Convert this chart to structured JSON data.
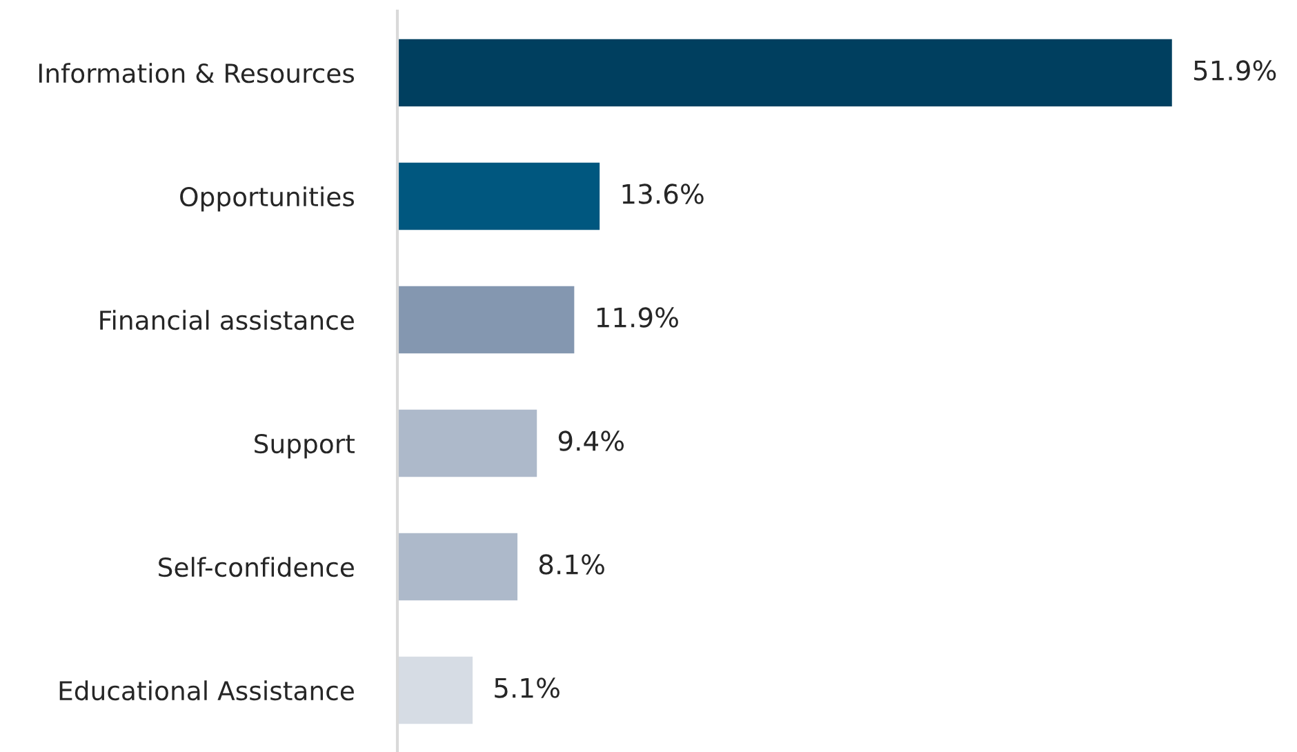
{
  "chart_data": {
    "type": "bar",
    "orientation": "horizontal",
    "categories": [
      "Information & Resources",
      "Opportunities",
      "Financial assistance",
      "Support",
      "Self-confidence",
      "Educational Assistance"
    ],
    "values": [
      51.9,
      13.6,
      11.9,
      9.4,
      8.1,
      5.1
    ],
    "value_labels": [
      "51.9%",
      "13.6%",
      "11.9%",
      "9.4%",
      "8.1%",
      "5.1%"
    ],
    "colors": [
      "#003f5f",
      "#00577f",
      "#8497b0",
      "#adb9ca",
      "#adb9ca",
      "#d6dce4"
    ],
    "grid": false,
    "legend": false
  }
}
